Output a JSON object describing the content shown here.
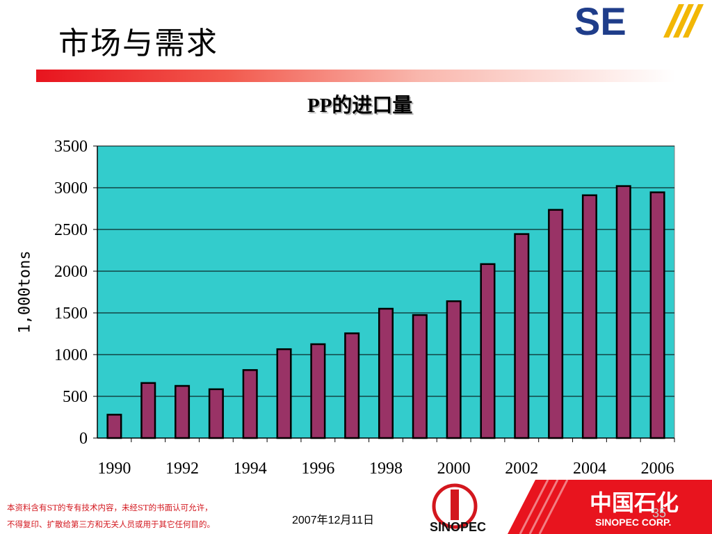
{
  "slide": {
    "title": "市场与需求",
    "footer_note_line1": "本资料含有ST的专有技术内容，未经ST的书面认可允许，",
    "footer_note_line2": "不得复印、扩散给第三方和无关人员或用于其它任何目的。",
    "date": "2007年12月11日",
    "page_number": "35",
    "logo_text": "SE",
    "company_cn": "中国石化",
    "company_en": "SINOPEC CORP.",
    "emblem_text": "SINOPEC"
  },
  "colors": {
    "plot_background": "#33cccc",
    "bar_fill": "#993366",
    "accent_red": "#e8141e",
    "logo_blue": "#1f3d8a",
    "logo_yellow": "#f2b705"
  },
  "chart_data": {
    "type": "bar",
    "title": "PP的进口量",
    "xlabel": "",
    "ylabel": "1,000tons",
    "categories": [
      "1990",
      "1991",
      "1992",
      "1993",
      "1994",
      "1995",
      "1996",
      "1997",
      "1998",
      "1999",
      "2000",
      "2001",
      "2002",
      "2003",
      "2004",
      "2005",
      "2006"
    ],
    "x_tick_labels": [
      "1990",
      "1992",
      "1994",
      "1996",
      "1998",
      "2000",
      "2002",
      "2004",
      "2006"
    ],
    "values": [
      280,
      660,
      625,
      585,
      815,
      1065,
      1125,
      1255,
      1550,
      1475,
      1640,
      2085,
      2445,
      2735,
      2910,
      3020,
      2945
    ],
    "ylim": [
      0,
      3500
    ],
    "y_ticks": [
      0,
      500,
      1000,
      1500,
      2000,
      2500,
      3000,
      3500
    ],
    "grid": true,
    "legend": "none"
  }
}
